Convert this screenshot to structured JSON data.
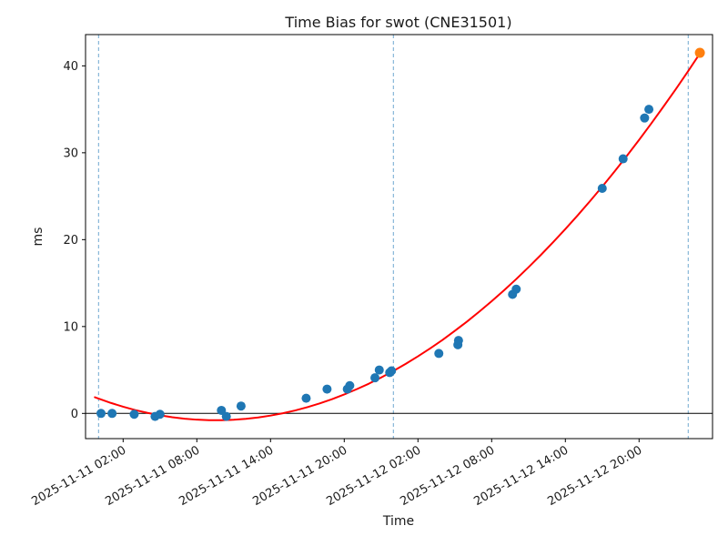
{
  "chart_data": {
    "type": "scatter",
    "title": "Time Bias for swot (CNE31501)",
    "xlabel": "Time",
    "ylabel": "ms",
    "axes": {
      "xlim_hours": [
        -1.06,
        49.98
      ],
      "ylim": [
        -2.9,
        43.6
      ],
      "time_origin": "2025-11-11 00:00",
      "grid": false,
      "x_ticks": [
        {
          "label": "2025-11-11 02:00",
          "t": 2
        },
        {
          "label": "2025-11-11 08:00",
          "t": 8
        },
        {
          "label": "2025-11-11 14:00",
          "t": 14
        },
        {
          "label": "2025-11-11 20:00",
          "t": 20
        },
        {
          "label": "2025-11-12 02:00",
          "t": 26
        },
        {
          "label": "2025-11-12 08:00",
          "t": 32
        },
        {
          "label": "2025-11-12 14:00",
          "t": 38
        },
        {
          "label": "2025-11-12 20:00",
          "t": 44
        }
      ],
      "y_ticks": [
        0,
        10,
        20,
        30,
        40
      ]
    },
    "colors": {
      "measurement": "#1f77b4",
      "highlight": "#ff7f0e",
      "fit_curve": "#ff0000",
      "day_boundary": "#6fa8d0",
      "zero_line": "#000000",
      "spine": "#000000"
    },
    "day_boundaries": {
      "style": "dashed",
      "t_hours": [
        0,
        24,
        48
      ],
      "dates": [
        "2025-11-11 00:00",
        "2025-11-12 00:00",
        "2025-11-13 00:00"
      ]
    },
    "zero_line_ms": 0,
    "series": [
      {
        "name": "bias-measurements",
        "type": "scatter",
        "marker_radius": 5,
        "points": [
          {
            "time": "2025-11-11 00:12",
            "t": 0.2,
            "ms": 0.0
          },
          {
            "time": "2025-11-11 01:06",
            "t": 1.1,
            "ms": 0.0
          },
          {
            "time": "2025-11-11 02:54",
            "t": 2.9,
            "ms": -0.1
          },
          {
            "time": "2025-11-11 04:36",
            "t": 4.6,
            "ms": -0.35
          },
          {
            "time": "2025-11-11 05:00",
            "t": 5.0,
            "ms": -0.1
          },
          {
            "time": "2025-11-11 10:00",
            "t": 10.0,
            "ms": 0.35
          },
          {
            "time": "2025-11-11 10:24",
            "t": 10.4,
            "ms": -0.35
          },
          {
            "time": "2025-11-11 11:36",
            "t": 11.6,
            "ms": 0.85
          },
          {
            "time": "2025-11-11 16:54",
            "t": 16.9,
            "ms": 1.75
          },
          {
            "time": "2025-11-11 18:36",
            "t": 18.6,
            "ms": 2.8
          },
          {
            "time": "2025-11-11 20:15",
            "t": 20.25,
            "ms": 2.8
          },
          {
            "time": "2025-11-11 20:27",
            "t": 20.45,
            "ms": 3.2
          },
          {
            "time": "2025-11-11 22:30",
            "t": 22.5,
            "ms": 4.1
          },
          {
            "time": "2025-11-11 22:51",
            "t": 22.85,
            "ms": 5.0
          },
          {
            "time": "2025-11-11 23:42",
            "t": 23.7,
            "ms": 4.7
          },
          {
            "time": "2025-11-11 23:51",
            "t": 23.85,
            "ms": 4.9
          },
          {
            "time": "2025-11-12 03:42",
            "t": 27.7,
            "ms": 6.9
          },
          {
            "time": "2025-11-12 05:15",
            "t": 29.25,
            "ms": 7.9
          },
          {
            "time": "2025-11-12 05:18",
            "t": 29.3,
            "ms": 8.4
          },
          {
            "time": "2025-11-12 09:42",
            "t": 33.7,
            "ms": 13.7
          },
          {
            "time": "2025-11-12 10:00",
            "t": 34.0,
            "ms": 14.3
          },
          {
            "time": "2025-11-12 17:00",
            "t": 41.0,
            "ms": 25.9
          },
          {
            "time": "2025-11-12 18:42",
            "t": 42.7,
            "ms": 29.3
          },
          {
            "time": "2025-11-12 20:27",
            "t": 44.45,
            "ms": 34.0
          },
          {
            "time": "2025-11-12 20:48",
            "t": 44.8,
            "ms": 35.0
          }
        ]
      },
      {
        "name": "latest-extrapolated-point",
        "type": "scatter",
        "marker_radius": 5.5,
        "points": [
          {
            "time": "2025-11-13 00:57",
            "t": 48.95,
            "ms": 41.5
          }
        ]
      },
      {
        "name": "quadratic-fit",
        "type": "line",
        "line_width": 2,
        "points": [
          [
            -0.3,
            1.86
          ],
          [
            1,
            1.21
          ],
          [
            2,
            0.77
          ],
          [
            3,
            0.38
          ],
          [
            4,
            0.06
          ],
          [
            5,
            -0.22
          ],
          [
            6,
            -0.44
          ],
          [
            7,
            -0.61
          ],
          [
            8,
            -0.72
          ],
          [
            9,
            -0.78
          ],
          [
            10,
            -0.78
          ],
          [
            11,
            -0.73
          ],
          [
            12,
            -0.62
          ],
          [
            13,
            -0.46
          ],
          [
            14,
            -0.25
          ],
          [
            15,
            0.02
          ],
          [
            16,
            0.34
          ],
          [
            17,
            0.72
          ],
          [
            18,
            1.15
          ],
          [
            19,
            1.64
          ],
          [
            20,
            2.18
          ],
          [
            21,
            2.78
          ],
          [
            22,
            3.42
          ],
          [
            23,
            4.13
          ],
          [
            24,
            4.89
          ],
          [
            25,
            5.7
          ],
          [
            26,
            6.57
          ],
          [
            27,
            7.49
          ],
          [
            28,
            8.46
          ],
          [
            29,
            9.5
          ],
          [
            30,
            10.58
          ],
          [
            31,
            11.72
          ],
          [
            32,
            12.91
          ],
          [
            33,
            14.16
          ],
          [
            34,
            15.46
          ],
          [
            35,
            16.82
          ],
          [
            36,
            18.23
          ],
          [
            37,
            19.7
          ],
          [
            38,
            21.22
          ],
          [
            39,
            22.79
          ],
          [
            40,
            24.42
          ],
          [
            41,
            26.1
          ],
          [
            42,
            27.84
          ],
          [
            43,
            29.63
          ],
          [
            44,
            31.48
          ],
          [
            45,
            33.38
          ],
          [
            46,
            35.34
          ],
          [
            47,
            37.34
          ],
          [
            48,
            39.41
          ],
          [
            48.95,
            41.42
          ]
        ]
      }
    ]
  }
}
